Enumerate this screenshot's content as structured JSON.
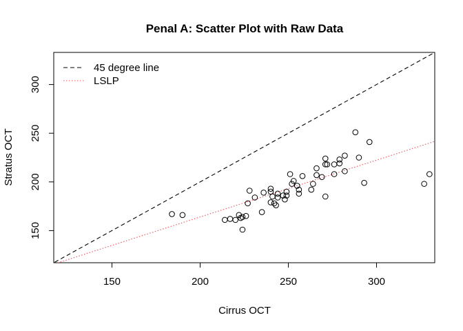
{
  "chart_data": {
    "type": "scatter",
    "title": "Penal A: Scatter Plot with Raw Data",
    "xlabel": "Cirrus OCT",
    "ylabel": "Stratus OCT",
    "xlim": [
      117,
      333
    ],
    "ylim": [
      117,
      333
    ],
    "xticks": [
      150,
      200,
      250,
      300
    ],
    "yticks": [
      150,
      200,
      250,
      300
    ],
    "grid": false,
    "legend_position": "top-left",
    "legend": [
      {
        "label": "45 degree line",
        "style": "dashed",
        "color": "#000000"
      },
      {
        "label": "LSLP",
        "style": "dotted",
        "color": "#e8525a"
      }
    ],
    "reference_line": {
      "intercept": 0,
      "slope": 1
    },
    "fit_line": {
      "intercept": 47.2,
      "slope": 0.5839
    },
    "points": [
      {
        "x": 184,
        "y": 167
      },
      {
        "x": 190,
        "y": 166
      },
      {
        "x": 214,
        "y": 161
      },
      {
        "x": 217,
        "y": 162
      },
      {
        "x": 220,
        "y": 161
      },
      {
        "x": 222,
        "y": 166
      },
      {
        "x": 223,
        "y": 163
      },
      {
        "x": 224,
        "y": 151
      },
      {
        "x": 224,
        "y": 164
      },
      {
        "x": 226,
        "y": 165
      },
      {
        "x": 227,
        "y": 178
      },
      {
        "x": 228,
        "y": 191
      },
      {
        "x": 231,
        "y": 184
      },
      {
        "x": 235,
        "y": 169
      },
      {
        "x": 236,
        "y": 189
      },
      {
        "x": 240,
        "y": 179
      },
      {
        "x": 240,
        "y": 190
      },
      {
        "x": 240,
        "y": 193
      },
      {
        "x": 241,
        "y": 185
      },
      {
        "x": 242,
        "y": 178
      },
      {
        "x": 243,
        "y": 176
      },
      {
        "x": 244,
        "y": 184
      },
      {
        "x": 244,
        "y": 188
      },
      {
        "x": 247,
        "y": 186
      },
      {
        "x": 248,
        "y": 182
      },
      {
        "x": 249,
        "y": 186
      },
      {
        "x": 249,
        "y": 190
      },
      {
        "x": 251,
        "y": 208
      },
      {
        "x": 252,
        "y": 198
      },
      {
        "x": 253,
        "y": 201
      },
      {
        "x": 255,
        "y": 196
      },
      {
        "x": 256,
        "y": 192
      },
      {
        "x": 256,
        "y": 188
      },
      {
        "x": 258,
        "y": 206
      },
      {
        "x": 263,
        "y": 192
      },
      {
        "x": 264,
        "y": 198
      },
      {
        "x": 266,
        "y": 214
      },
      {
        "x": 266,
        "y": 207
      },
      {
        "x": 269,
        "y": 205
      },
      {
        "x": 271,
        "y": 224
      },
      {
        "x": 271,
        "y": 218
      },
      {
        "x": 271,
        "y": 185
      },
      {
        "x": 272,
        "y": 218
      },
      {
        "x": 276,
        "y": 218
      },
      {
        "x": 276,
        "y": 208
      },
      {
        "x": 279,
        "y": 219
      },
      {
        "x": 279,
        "y": 223
      },
      {
        "x": 282,
        "y": 227
      },
      {
        "x": 282,
        "y": 211
      },
      {
        "x": 288,
        "y": 251
      },
      {
        "x": 290,
        "y": 225
      },
      {
        "x": 293,
        "y": 199
      },
      {
        "x": 296,
        "y": 241
      },
      {
        "x": 327,
        "y": 198
      },
      {
        "x": 330,
        "y": 208
      }
    ]
  }
}
